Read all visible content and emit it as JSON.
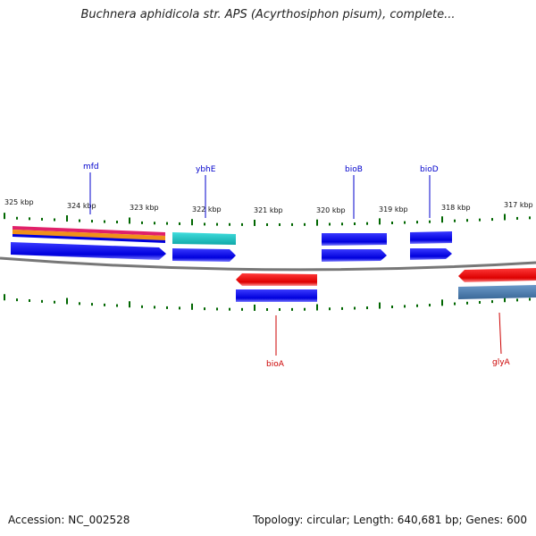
{
  "title": "Buchnera aphidicola str. APS (Acyrthosiphon pisum), complete...",
  "footer": {
    "accession": "Accession: NC_002528",
    "summary": "Topology: circular; Length: 640,681 bp; Genes: 600"
  },
  "colors": {
    "forward_gene": "#0000ee",
    "reverse_gene": "#ee0000",
    "forward_label": "#0000cc",
    "reverse_label": "#cc0000",
    "tick": "#006600",
    "backbone": "#777777",
    "pink": "#e0206a",
    "orange": "#f0901a",
    "cyan": "#20c8c8",
    "steel": "#4a78a8"
  },
  "ticks": [
    {
      "label": "325 kbp"
    },
    {
      "label": "324 kbp"
    },
    {
      "label": "323 kbp"
    },
    {
      "label": "322 kbp"
    },
    {
      "label": "321 kbp"
    },
    {
      "label": "320 kbp"
    },
    {
      "label": "319 kbp"
    },
    {
      "label": "318 kbp"
    },
    {
      "label": "317 kbp"
    }
  ],
  "forward_genes": [
    {
      "name": "mfd"
    },
    {
      "name": "ybhE"
    },
    {
      "name": "bioB"
    },
    {
      "name": "bioD"
    }
  ],
  "reverse_genes": [
    {
      "name": "bioA"
    },
    {
      "name": "glyA"
    }
  ]
}
